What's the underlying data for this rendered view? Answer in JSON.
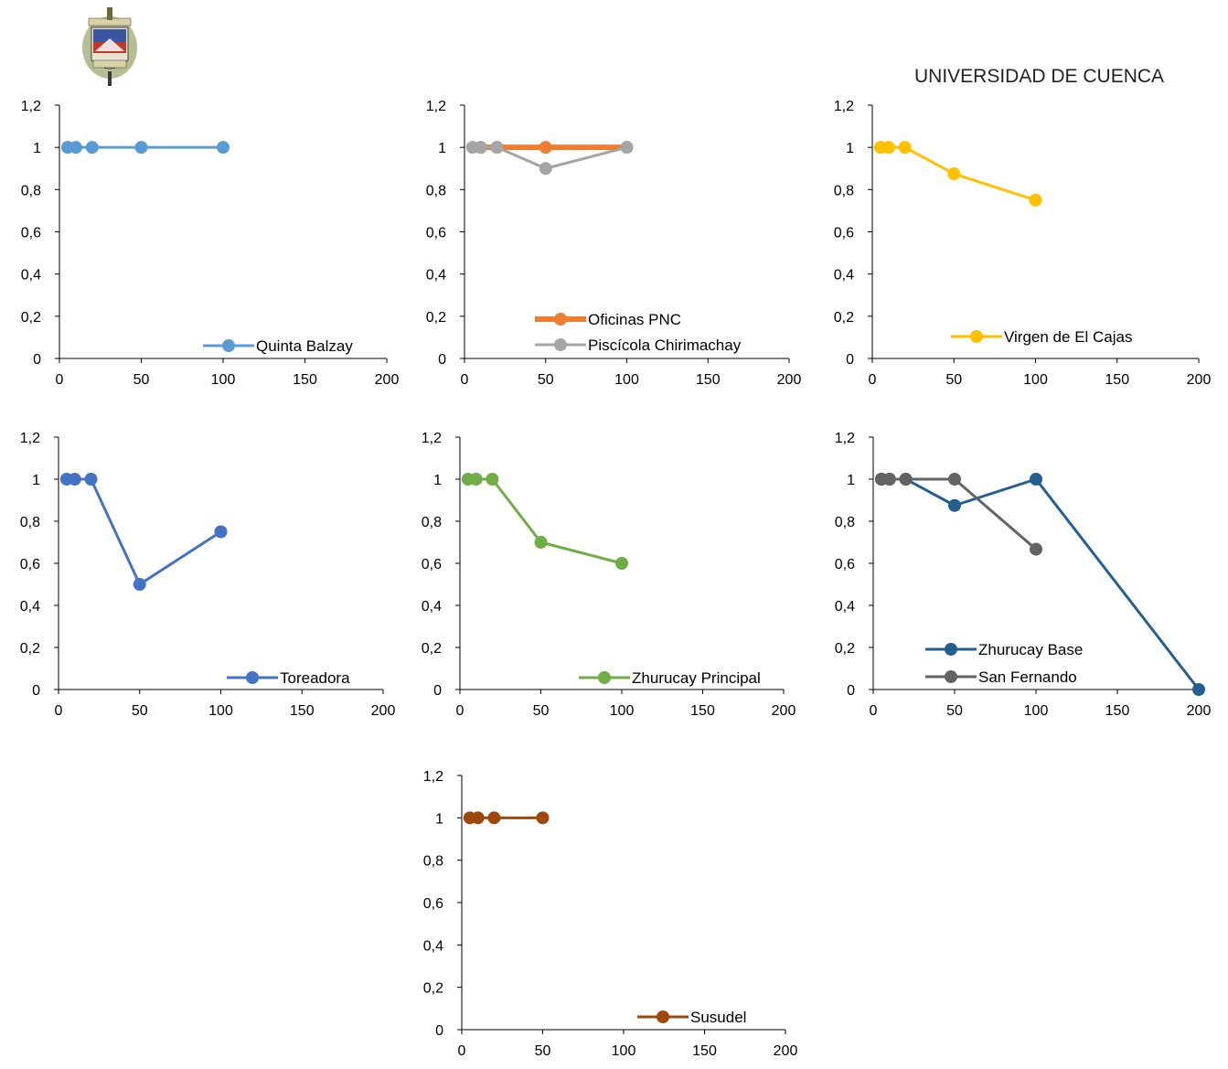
{
  "header": {
    "title": "UNIVERSIDAD DE CUENCA"
  },
  "chart_data": [
    {
      "type": "line",
      "xlim": [
        0,
        200
      ],
      "ylim": [
        0,
        1.2
      ],
      "xticks": [
        "0",
        "50",
        "100",
        "150",
        "200"
      ],
      "yticks": [
        "0",
        "0,2",
        "0,4",
        "0,6",
        "0,8",
        "1",
        "1,2"
      ],
      "legend_position": "bottom-right",
      "series": [
        {
          "name": "Quinta Balzay",
          "color": "#5b9bd5",
          "x": [
            5,
            10,
            20,
            50,
            100
          ],
          "y": [
            1,
            1,
            1,
            1,
            1
          ]
        }
      ]
    },
    {
      "type": "line",
      "xlim": [
        0,
        200
      ],
      "ylim": [
        0,
        1.2
      ],
      "xticks": [
        "0",
        "50",
        "100",
        "150",
        "200"
      ],
      "yticks": [
        "0",
        "0,2",
        "0,4",
        "0,6",
        "0,8",
        "1",
        "1,2"
      ],
      "legend_position": "bottom-right",
      "series": [
        {
          "name": "Oficinas PNC",
          "color": "#ed7d31",
          "x": [
            5,
            10,
            20,
            50,
            100
          ],
          "y": [
            1,
            1,
            1,
            1,
            1
          ]
        },
        {
          "name": "Piscícola Chirimachay",
          "color": "#a5a5a5",
          "x": [
            5,
            10,
            20,
            50,
            100
          ],
          "y": [
            1,
            1,
            1,
            0.9,
            1
          ]
        }
      ]
    },
    {
      "type": "line",
      "xlim": [
        0,
        200
      ],
      "ylim": [
        0,
        1.2
      ],
      "xticks": [
        "0",
        "50",
        "100",
        "150",
        "200"
      ],
      "yticks": [
        "0",
        "0,2",
        "0,4",
        "0,6",
        "0,8",
        "1",
        "1,2"
      ],
      "legend_position": "bottom-right",
      "series": [
        {
          "name": "Virgen de El Cajas",
          "color": "#ffc000",
          "x": [
            5,
            10,
            20,
            50,
            100
          ],
          "y": [
            1,
            1,
            1,
            0.875,
            0.75
          ]
        }
      ]
    },
    {
      "type": "line",
      "xlim": [
        0,
        200
      ],
      "ylim": [
        0,
        1.2
      ],
      "xticks": [
        "0",
        "50",
        "100",
        "150",
        "200"
      ],
      "yticks": [
        "0",
        "0,2",
        "0,4",
        "0,6",
        "0,8",
        "1",
        "1,2"
      ],
      "legend_position": "bottom-right",
      "series": [
        {
          "name": "Toreadora",
          "color": "#4472c4",
          "x": [
            5,
            10,
            20,
            50,
            100
          ],
          "y": [
            1,
            1,
            1,
            0.5,
            0.75
          ]
        }
      ]
    },
    {
      "type": "line",
      "xlim": [
        0,
        200
      ],
      "ylim": [
        0,
        1.2
      ],
      "xticks": [
        "0",
        "50",
        "100",
        "150",
        "200"
      ],
      "yticks": [
        "0",
        "0,2",
        "0,4",
        "0,6",
        "0,8",
        "1",
        "1,2"
      ],
      "legend_position": "bottom-right",
      "series": [
        {
          "name": "Zhurucay Principal",
          "color": "#70ad47",
          "x": [
            5,
            10,
            20,
            50,
            100
          ],
          "y": [
            1,
            1,
            1,
            0.7,
            0.6
          ]
        }
      ]
    },
    {
      "type": "line",
      "xlim": [
        0,
        200
      ],
      "ylim": [
        0,
        1.2
      ],
      "xticks": [
        "0",
        "50",
        "100",
        "150",
        "200"
      ],
      "yticks": [
        "0",
        "0,2",
        "0,4",
        "0,6",
        "0,8",
        "1",
        "1,2"
      ],
      "legend_position": "bottom-right",
      "series": [
        {
          "name": "Zhurucay Base",
          "color": "#255e91",
          "x": [
            5,
            10,
            20,
            50,
            100,
            200
          ],
          "y": [
            1,
            1,
            1,
            0.875,
            1,
            0
          ]
        },
        {
          "name": "San Fernando",
          "color": "#636363",
          "x": [
            5,
            10,
            20,
            50,
            100
          ],
          "y": [
            1,
            1,
            1,
            1,
            0.667
          ]
        }
      ]
    },
    {
      "type": "line",
      "xlim": [
        0,
        200
      ],
      "ylim": [
        0,
        1.2
      ],
      "xticks": [
        "0",
        "50",
        "100",
        "150",
        "200"
      ],
      "yticks": [
        "0",
        "0,2",
        "0,4",
        "0,6",
        "0,8",
        "1",
        "1,2"
      ],
      "legend_position": "bottom-right",
      "series": [
        {
          "name": "Susudel",
          "color": "#9e480e",
          "x": [
            5,
            10,
            20,
            50
          ],
          "y": [
            1,
            1,
            1,
            1
          ]
        }
      ]
    }
  ]
}
